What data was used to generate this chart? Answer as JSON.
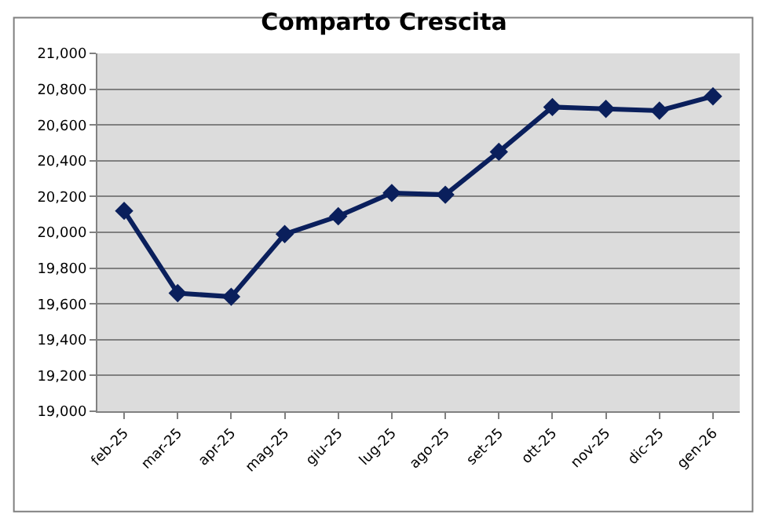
{
  "chart_data": {
    "type": "line",
    "title": "Comparto Crescita",
    "categories": [
      "feb-25",
      "mar-25",
      "apr-25",
      "mag-25",
      "giu-25",
      "lug-25",
      "ago-25",
      "set-25",
      "ott-25",
      "nov-25",
      "dic-25",
      "gen-26"
    ],
    "series": [
      {
        "color": "#0a1f5c",
        "values": [
          20120,
          19660,
          19640,
          19990,
          20090,
          20220,
          20210,
          20450,
          20700,
          20690,
          20680,
          20760
        ]
      }
    ],
    "ylim": [
      19000,
      21000
    ],
    "yticks": [
      {
        "value": 19000,
        "label": "19,000"
      },
      {
        "value": 19200,
        "label": "19,200"
      },
      {
        "value": 19400,
        "label": "19,400"
      },
      {
        "value": 19600,
        "label": "19,600"
      },
      {
        "value": 19800,
        "label": "19,800"
      },
      {
        "value": 20000,
        "label": "20,000"
      },
      {
        "value": 20200,
        "label": "20,200"
      },
      {
        "value": 20400,
        "label": "20,400"
      },
      {
        "value": 20600,
        "label": "20,600"
      },
      {
        "value": 20800,
        "label": "20,800"
      },
      {
        "value": 21000,
        "label": "21,000"
      }
    ],
    "grid": "y",
    "marker": "diamond",
    "line_style": "solid"
  }
}
